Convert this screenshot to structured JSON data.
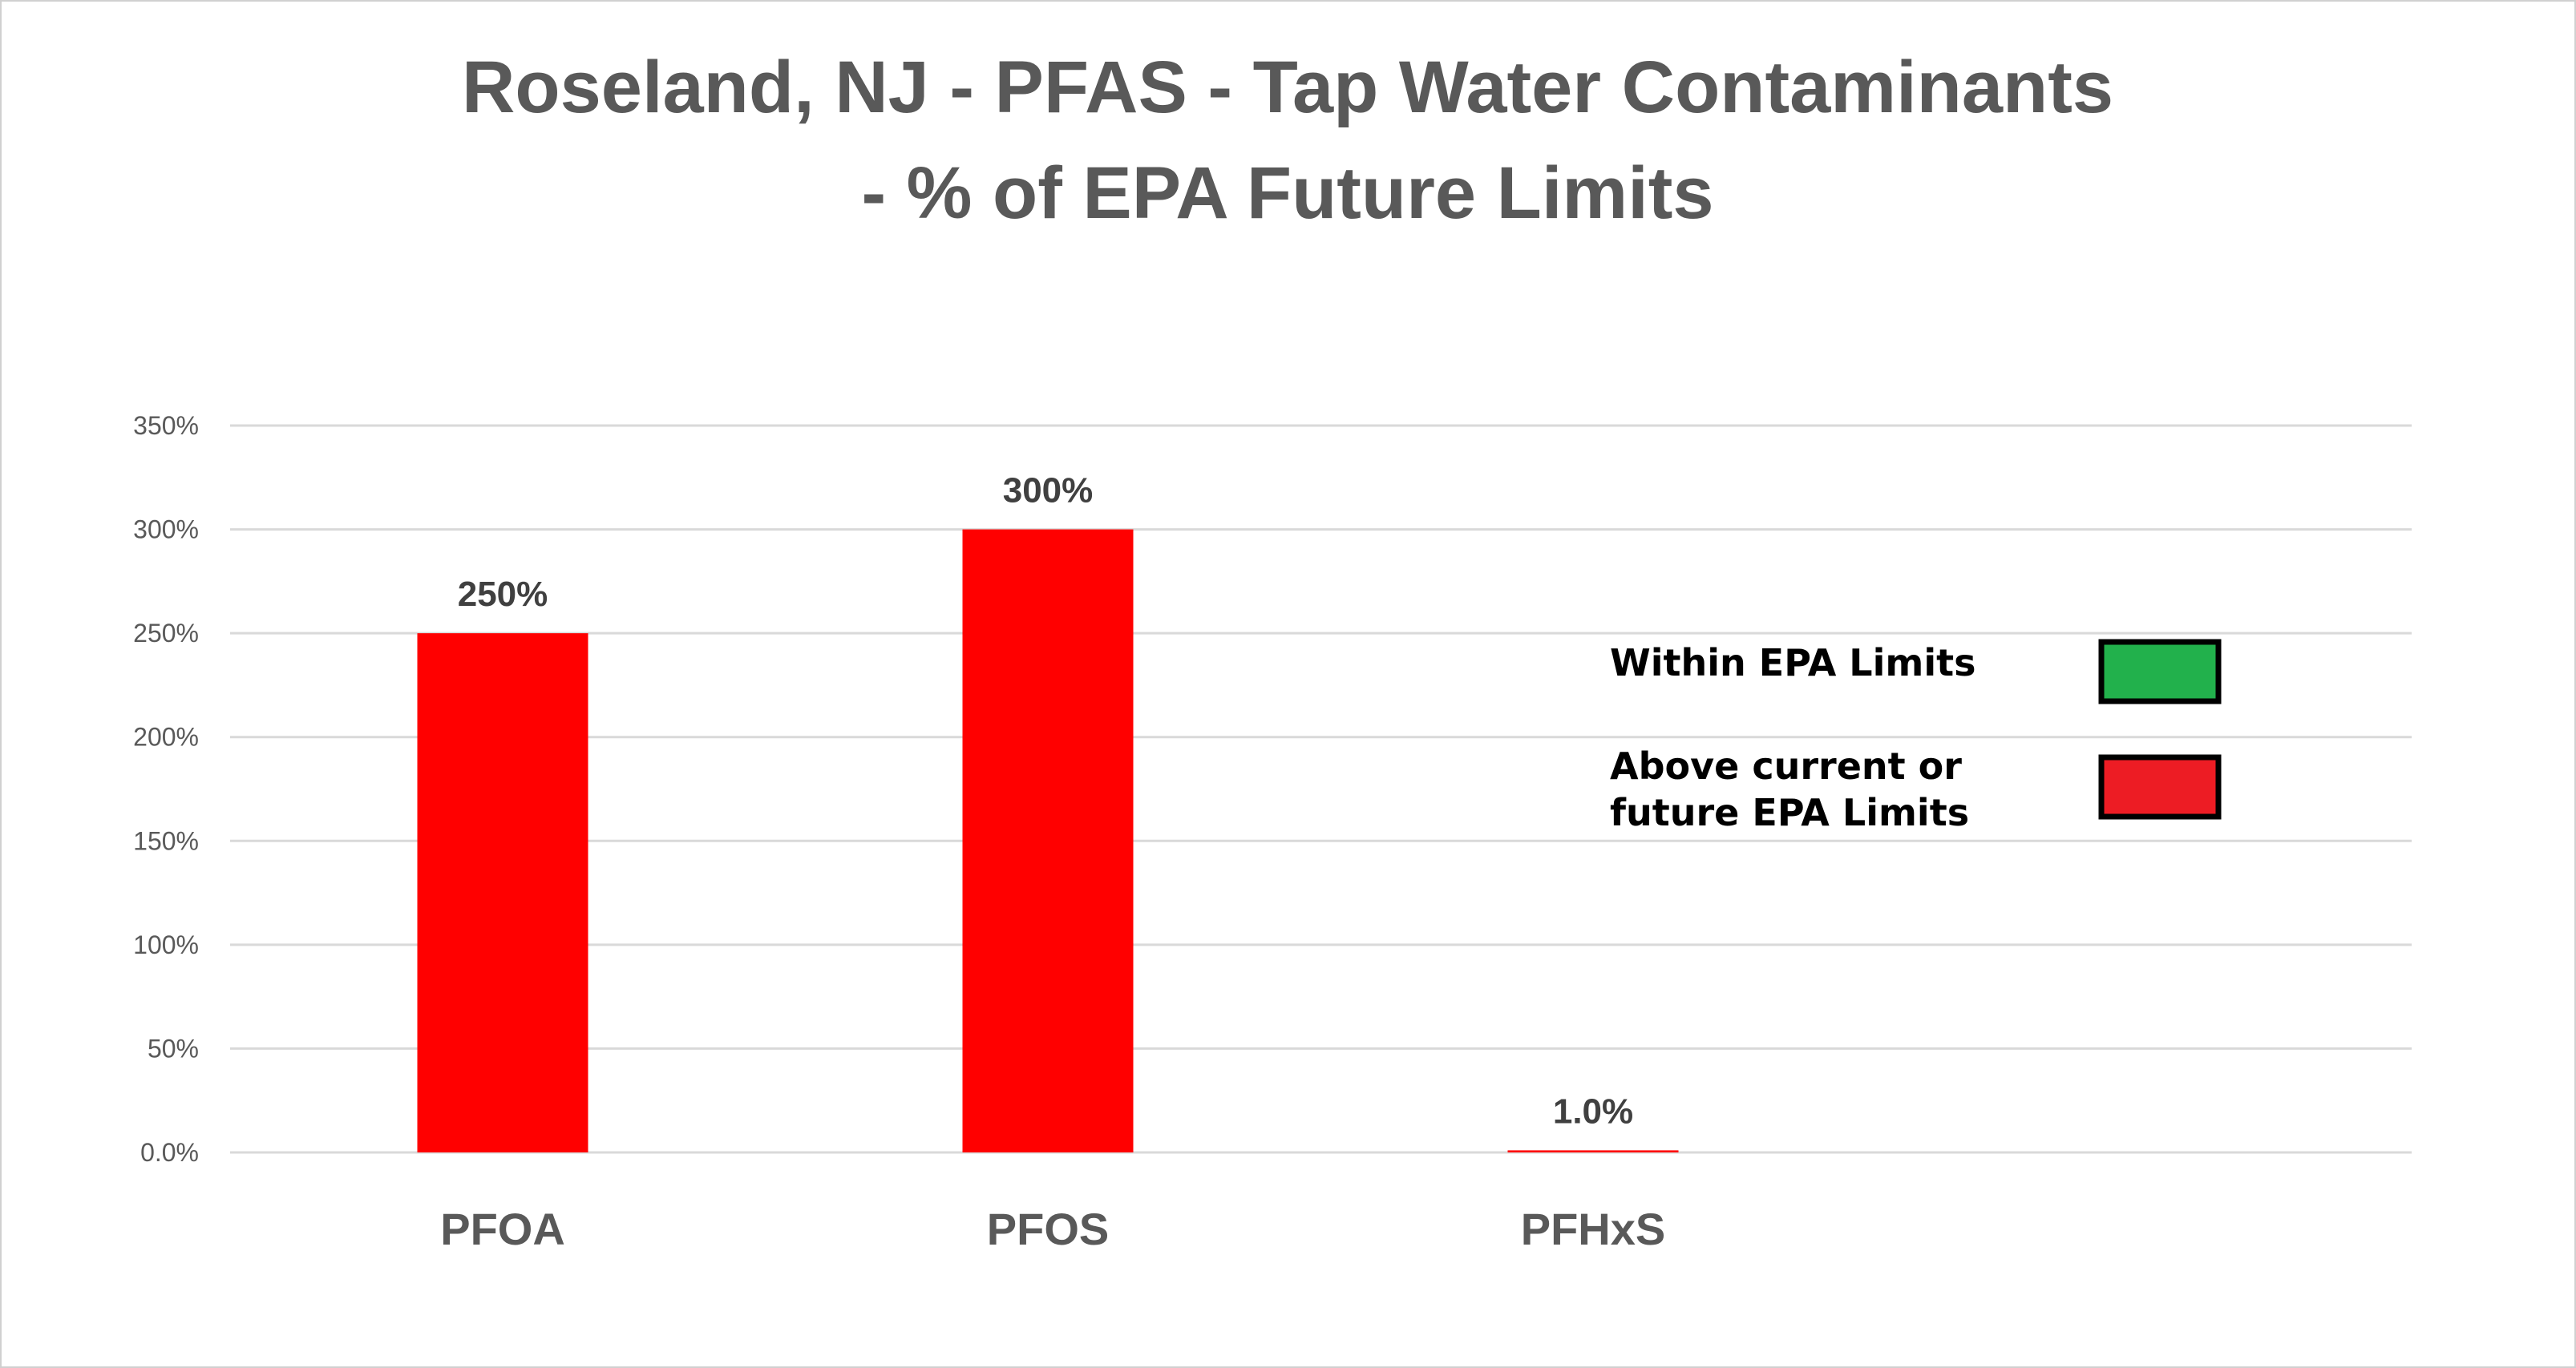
{
  "chart_data": {
    "type": "bar",
    "title_lines": [
      "Roseland, NJ - PFAS - Tap Water Contaminants",
      "- % of EPA Future Limits"
    ],
    "categories": [
      "PFOA",
      "PFOS",
      "PFHxS"
    ],
    "values": [
      250,
      300,
      1.0
    ],
    "data_labels": [
      "250%",
      "300%",
      "1.0%"
    ],
    "bar_color": "#FF0000",
    "ylim": [
      0,
      350
    ],
    "yticks": [
      0,
      50,
      100,
      150,
      200,
      250,
      300,
      350
    ],
    "ytick_labels": [
      "0.0%",
      "50%",
      "100%",
      "150%",
      "200%",
      "250%",
      "300%",
      "350%"
    ],
    "grid": true,
    "legend": {
      "placement": "right",
      "items": [
        {
          "lines": [
            "Within  EPA Limits"
          ],
          "color": "#22B14C"
        },
        {
          "lines": [
            "Above current or",
            "future EPA Limits"
          ],
          "color": "#ED1C24"
        }
      ]
    }
  }
}
